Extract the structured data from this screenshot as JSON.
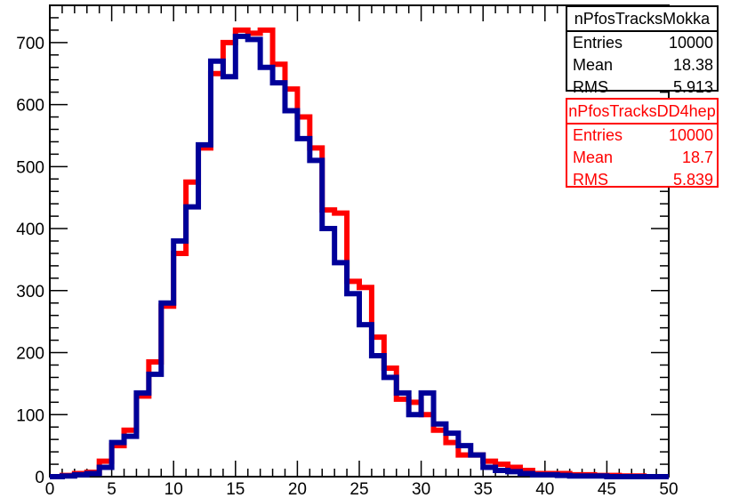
{
  "chart_data": {
    "type": "histogram",
    "title": "",
    "xlabel": "",
    "ylabel": "",
    "xlim": [
      0,
      50
    ],
    "ylim": [
      0,
      760
    ],
    "x_ticks": [
      "0",
      "5",
      "10",
      "15",
      "20",
      "25",
      "30",
      "35",
      "40",
      "45",
      "50"
    ],
    "y_ticks": [
      "0",
      "100",
      "200",
      "300",
      "400",
      "500",
      "600",
      "700"
    ],
    "bin_edges_start": 0,
    "bin_width": 1,
    "grid": false,
    "series": [
      {
        "name": "nPfosTracksDD4hep",
        "color": "#ff0000",
        "values": [
          0,
          2,
          5,
          7,
          25,
          50,
          75,
          130,
          185,
          275,
          360,
          475,
          530,
          650,
          700,
          720,
          715,
          720,
          665,
          625,
          580,
          530,
          430,
          425,
          315,
          305,
          225,
          175,
          125,
          120,
          100,
          75,
          55,
          35,
          35,
          25,
          20,
          15,
          10,
          5,
          5,
          5,
          3,
          3,
          2,
          2,
          1,
          1,
          0,
          0
        ]
      },
      {
        "name": "nPfosTracksMokka",
        "color": "#000099",
        "values": [
          0,
          1,
          3,
          5,
          15,
          55,
          65,
          135,
          165,
          280,
          380,
          435,
          535,
          670,
          645,
          710,
          705,
          660,
          635,
          590,
          545,
          510,
          400,
          345,
          295,
          245,
          195,
          160,
          135,
          100,
          135,
          85,
          70,
          50,
          35,
          15,
          10,
          8,
          5,
          3,
          3,
          2,
          1,
          1,
          1,
          0,
          0,
          0,
          0,
          0
        ]
      }
    ]
  },
  "stats": {
    "mokka": {
      "title": "nPfosTracksMokka",
      "rows": [
        {
          "label": "Entries",
          "value": "10000"
        },
        {
          "label": "Mean",
          "value": "18.38"
        },
        {
          "label": "RMS",
          "value": "5.913"
        }
      ]
    },
    "dd4hep": {
      "title": "nPfosTracksDD4hep",
      "rows": [
        {
          "label": "Entries",
          "value": "10000"
        },
        {
          "label": "Mean",
          "value": "18.7"
        },
        {
          "label": "RMS",
          "value": "5.839"
        }
      ]
    }
  }
}
